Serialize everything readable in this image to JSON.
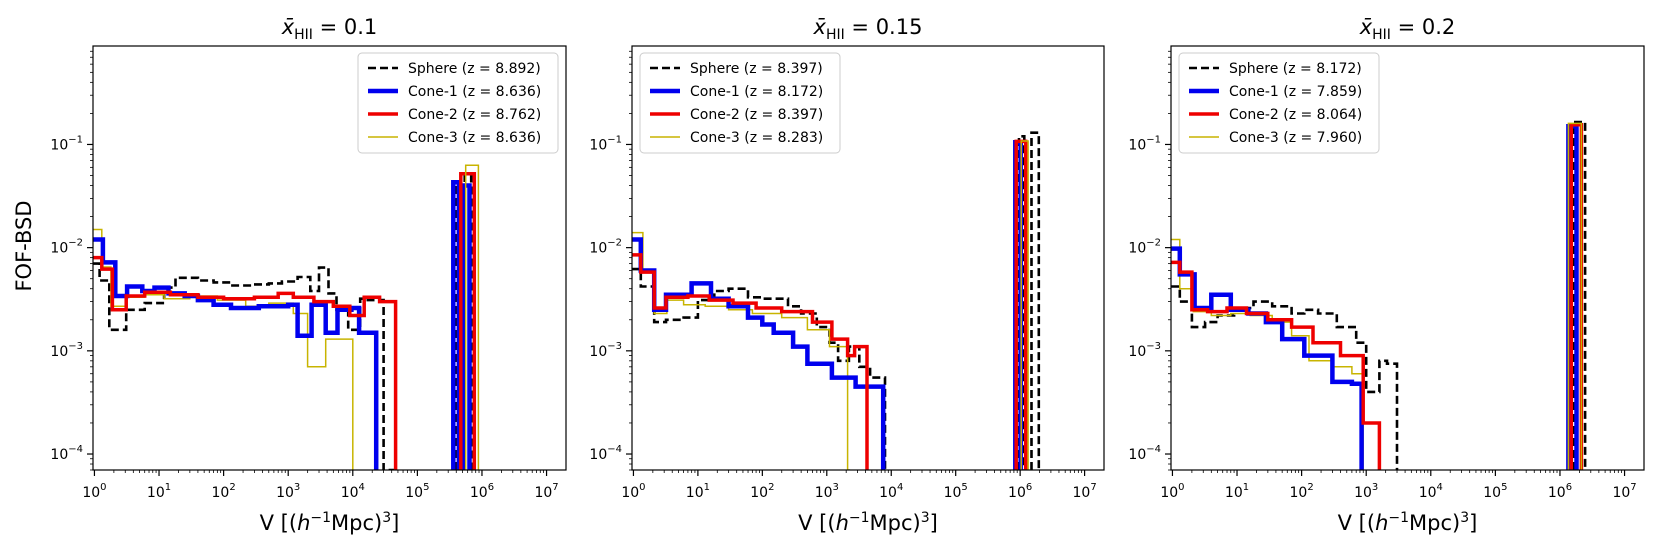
{
  "figure": {
    "ylabel": "FOF-BSD",
    "xlabel": "V [(",
    "xlabel_h": "h",
    "xlabel_exp": "−1",
    "xlabel_tail": "Mpc)",
    "xlabel_pow": "3",
    "xlabel_close": "]"
  },
  "chart_data": [
    {
      "type": "line",
      "step": true,
      "title_prefix": "x̄",
      "title_sub": "HII",
      "title_value": " = 0.1",
      "xscale": "log",
      "yscale": "log",
      "xlim": [
        0.95,
        20000000.0
      ],
      "ylim": [
        7e-05,
        0.9
      ],
      "xticks": [
        {
          "value": 1,
          "base": "10",
          "exp": "0"
        },
        {
          "value": 10,
          "base": "10",
          "exp": "1"
        },
        {
          "value": 100,
          "base": "10",
          "exp": "2"
        },
        {
          "value": 1000,
          "base": "10",
          "exp": "3"
        },
        {
          "value": 10000,
          "base": "10",
          "exp": "4"
        },
        {
          "value": 100000,
          "base": "10",
          "exp": "5"
        },
        {
          "value": 1000000,
          "base": "10",
          "exp": "6"
        },
        {
          "value": 10000000,
          "base": "10",
          "exp": "7"
        }
      ],
      "yticks": [
        {
          "value": 0.0001,
          "base": "10",
          "exp": "−4"
        },
        {
          "value": 0.001,
          "base": "10",
          "exp": "−3"
        },
        {
          "value": 0.01,
          "base": "10",
          "exp": "−2"
        },
        {
          "value": 0.1,
          "base": "10",
          "exp": "−1"
        }
      ],
      "legend_position": "upper-right",
      "series": [
        {
          "name": "Sphere (z = 8.892)",
          "color": "#000000",
          "style": "dashed",
          "width": 2.6,
          "x": [
            0.95,
            1.2,
            1.7,
            3.1,
            6,
            12,
            18,
            40,
            70,
            130,
            280,
            500,
            800,
            1400,
            2200,
            3000,
            4200,
            5600,
            8500,
            13000,
            16000,
            30000,
            45000
          ],
          "y": [
            0.007,
            0.0048,
            0.0016,
            0.0025,
            0.0029,
            0.0041,
            0.0051,
            0.0048,
            0.0046,
            0.0043,
            0.0044,
            0.0045,
            0.0047,
            0.0052,
            0.0038,
            0.0064,
            0.0036,
            0.0025,
            0.0016,
            0.0032,
            0.0031,
            7e-05,
            7e-05
          ]
        },
        {
          "name": "Cone-1 (z = 8.636)",
          "color": "#0000ee",
          "style": "solid",
          "width": 4.5,
          "x": [
            0.95,
            1.35,
            2.1,
            3.2,
            5.5,
            8.5,
            14,
            25,
            40,
            70,
            130,
            350,
            1000,
            1400,
            2300,
            3800,
            5800,
            9500,
            12500,
            23000
          ],
          "y": [
            0.012,
            0.0072,
            0.0034,
            0.0042,
            0.0038,
            0.0041,
            0.0036,
            0.0034,
            0.0031,
            0.0028,
            0.0026,
            0.0027,
            0.0028,
            0.0014,
            0.0028,
            0.0015,
            0.0025,
            0.0026,
            0.0015,
            7e-05
          ]
        },
        {
          "name": "Cone-2 (z = 8.762)",
          "color": "#ee0000",
          "style": "solid",
          "width": 3.5,
          "x": [
            0.95,
            1.3,
            1.9,
            3.1,
            6,
            15,
            40,
            100,
            300,
            700,
            1200,
            2500,
            5000,
            9000,
            15000,
            26000,
            46000
          ],
          "y": [
            0.008,
            0.0062,
            0.0025,
            0.0034,
            0.0037,
            0.0035,
            0.0033,
            0.0032,
            0.0033,
            0.0036,
            0.0033,
            0.003,
            0.0027,
            0.0022,
            0.0033,
            0.003,
            7e-05
          ]
        },
        {
          "name": "Cone-3 (z = 8.636)",
          "color": "#c8b400",
          "style": "solid",
          "width": 1.5,
          "x": [
            0.95,
            1.3,
            1.8,
            3.2,
            6,
            12,
            30,
            80,
            220,
            500,
            1200,
            2000,
            3800,
            6000,
            10000
          ],
          "y": [
            0.015,
            0.0065,
            0.0027,
            0.0033,
            0.0035,
            0.0032,
            0.0034,
            0.0031,
            0.0027,
            0.0029,
            0.0023,
            0.0007,
            0.0013,
            0.0013,
            7e-05
          ]
        }
      ],
      "peaks": [
        {
          "series": 0,
          "x0": 390000,
          "x1": 470000,
          "y": 0.04
        },
        {
          "series": 0,
          "x0": 540000,
          "x1": 680000,
          "y": 0.05
        },
        {
          "series": 1,
          "x0": 360000,
          "x1": 440000,
          "y": 0.043
        },
        {
          "series": 1,
          "x0": 520000,
          "x1": 640000,
          "y": 0.04
        },
        {
          "series": 2,
          "x0": 470000,
          "x1": 760000,
          "y": 0.052
        },
        {
          "series": 3,
          "x0": 560000,
          "x1": 880000,
          "y": 0.063
        }
      ]
    },
    {
      "type": "line",
      "step": true,
      "title_prefix": "x̄",
      "title_sub": "HII",
      "title_value": " = 0.15",
      "xscale": "log",
      "yscale": "log",
      "xlim": [
        0.95,
        20000000.0
      ],
      "ylim": [
        7e-05,
        0.9
      ],
      "xticks": [
        {
          "value": 1,
          "base": "10",
          "exp": "0"
        },
        {
          "value": 10,
          "base": "10",
          "exp": "1"
        },
        {
          "value": 100,
          "base": "10",
          "exp": "2"
        },
        {
          "value": 1000,
          "base": "10",
          "exp": "3"
        },
        {
          "value": 10000,
          "base": "10",
          "exp": "4"
        },
        {
          "value": 100000,
          "base": "10",
          "exp": "5"
        },
        {
          "value": 1000000,
          "base": "10",
          "exp": "6"
        },
        {
          "value": 10000000,
          "base": "10",
          "exp": "7"
        }
      ],
      "yticks": [
        {
          "value": 0.0001,
          "base": "10",
          "exp": "−4"
        },
        {
          "value": 0.001,
          "base": "10",
          "exp": "−3"
        },
        {
          "value": 0.01,
          "base": "10",
          "exp": "−2"
        },
        {
          "value": 0.1,
          "base": "10",
          "exp": "−1"
        }
      ],
      "legend_position": "upper-left",
      "series": [
        {
          "name": "Sphere (z = 8.397)",
          "color": "#000000",
          "style": "dashed",
          "width": 2.6,
          "x": [
            0.95,
            1.3,
            2.1,
            3.2,
            6,
            10,
            18,
            30,
            60,
            100,
            250,
            400,
            700,
            1100,
            1500,
            2200,
            3200,
            4700,
            8000,
            8500
          ],
          "y": [
            0.0062,
            0.0042,
            0.0019,
            0.002,
            0.0021,
            0.0031,
            0.0038,
            0.004,
            0.0033,
            0.0032,
            0.0027,
            0.0023,
            0.0017,
            0.0012,
            0.0008,
            0.0011,
            0.0007,
            0.00055,
            7e-05,
            7e-05
          ]
        },
        {
          "name": "Cone-1 (z = 8.172)",
          "color": "#0000ee",
          "style": "solid",
          "width": 4.5,
          "x": [
            0.95,
            1.3,
            2.1,
            3.2,
            8,
            16,
            30,
            60,
            100,
            150,
            300,
            500,
            1200,
            2800,
            4600,
            7500
          ],
          "y": [
            0.012,
            0.006,
            0.0025,
            0.0035,
            0.0045,
            0.0032,
            0.0027,
            0.0021,
            0.0018,
            0.0015,
            0.0011,
            0.00075,
            0.00055,
            0.00045,
            0.00045,
            7e-05
          ]
        },
        {
          "name": "Cone-2 (z = 8.397)",
          "color": "#ee0000",
          "style": "solid",
          "width": 3.5,
          "x": [
            0.95,
            1.3,
            2.1,
            3.2,
            7,
            15,
            35,
            80,
            200,
            600,
            1200,
            2100,
            2700,
            4200
          ],
          "y": [
            0.0085,
            0.0058,
            0.0026,
            0.0033,
            0.0034,
            0.0031,
            0.0029,
            0.0026,
            0.0024,
            0.0019,
            0.0013,
            0.0009,
            0.0011,
            7e-05
          ]
        },
        {
          "name": "Cone-3 (z = 8.283)",
          "color": "#c8b400",
          "style": "solid",
          "width": 1.5,
          "x": [
            0.95,
            1.4,
            2.1,
            3.3,
            6,
            13,
            30,
            70,
            200,
            500,
            1100,
            2100,
            2300
          ],
          "y": [
            0.014,
            0.006,
            0.0023,
            0.0031,
            0.0028,
            0.0027,
            0.0025,
            0.0023,
            0.0021,
            0.0016,
            0.0011,
            7e-05,
            7e-05
          ]
        }
      ],
      "peaks": [
        {
          "series": 0,
          "x0": 960000,
          "x1": 1160000,
          "y": 0.12
        },
        {
          "series": 0,
          "x0": 1500000,
          "x1": 1950000,
          "y": 0.13
        },
        {
          "series": 1,
          "x0": 840000,
          "x1": 1020000,
          "y": 0.105
        },
        {
          "series": 2,
          "x0": 870000,
          "x1": 1220000,
          "y": 0.107
        },
        {
          "series": 3,
          "x0": 1040000,
          "x1": 1330000,
          "y": 0.108
        }
      ]
    },
    {
      "type": "line",
      "step": true,
      "title_prefix": "x̄",
      "title_sub": "HII",
      "title_value": " = 0.2",
      "xscale": "log",
      "yscale": "log",
      "xlim": [
        0.95,
        20000000.0
      ],
      "ylim": [
        7e-05,
        0.9
      ],
      "xticks": [
        {
          "value": 1,
          "base": "10",
          "exp": "0"
        },
        {
          "value": 10,
          "base": "10",
          "exp": "1"
        },
        {
          "value": 100,
          "base": "10",
          "exp": "2"
        },
        {
          "value": 1000,
          "base": "10",
          "exp": "3"
        },
        {
          "value": 10000,
          "base": "10",
          "exp": "4"
        },
        {
          "value": 100000,
          "base": "10",
          "exp": "5"
        },
        {
          "value": 1000000,
          "base": "10",
          "exp": "6"
        },
        {
          "value": 10000000,
          "base": "10",
          "exp": "7"
        }
      ],
      "yticks": [
        {
          "value": 0.0001,
          "base": "10",
          "exp": "−4"
        },
        {
          "value": 0.001,
          "base": "10",
          "exp": "−3"
        },
        {
          "value": 0.01,
          "base": "10",
          "exp": "−2"
        },
        {
          "value": 0.1,
          "base": "10",
          "exp": "−1"
        }
      ],
      "legend_position": "upper-left",
      "series": [
        {
          "name": "Sphere (z = 8.172)",
          "color": "#000000",
          "style": "dashed",
          "width": 2.6,
          "x": [
            0.95,
            1.3,
            2,
            3.2,
            5,
            9,
            18,
            35,
            70,
            110,
            180,
            350,
            700,
            1000,
            1600,
            2100,
            3000
          ],
          "y": [
            0.0042,
            0.003,
            0.0017,
            0.0019,
            0.0022,
            0.0026,
            0.003,
            0.0027,
            0.0023,
            0.0025,
            0.0023,
            0.0017,
            0.0012,
            0.0004,
            0.0008,
            0.00075,
            7e-05
          ]
        },
        {
          "name": "Cone-1 (z = 7.859)",
          "color": "#0000ee",
          "style": "solid",
          "width": 4.5,
          "x": [
            0.95,
            1.3,
            2.2,
            4,
            8,
            15,
            28,
            50,
            110,
            300,
            600,
            850
          ],
          "y": [
            0.0098,
            0.0055,
            0.0026,
            0.0035,
            0.0025,
            0.0023,
            0.0019,
            0.0013,
            0.0009,
            0.0005,
            0.00048,
            7e-05
          ]
        },
        {
          "name": "Cone-2 (z = 8.064)",
          "color": "#ee0000",
          "style": "solid",
          "width": 3.5,
          "x": [
            0.95,
            1.3,
            2,
            3.5,
            7,
            14,
            30,
            70,
            150,
            400,
            900,
            1600
          ],
          "y": [
            0.0072,
            0.0058,
            0.0025,
            0.0024,
            0.0026,
            0.0023,
            0.002,
            0.0017,
            0.0012,
            0.0009,
            0.0002,
            7e-05
          ]
        },
        {
          "name": "Cone-3 (z = 7.960)",
          "color": "#c8b400",
          "style": "solid",
          "width": 1.5,
          "x": [
            0.95,
            1.3,
            2.1,
            4,
            8,
            16,
            35,
            70,
            130,
            300,
            600,
            900
          ],
          "y": [
            0.012,
            0.004,
            0.0024,
            0.0022,
            0.0023,
            0.0022,
            0.0019,
            0.0014,
            0.0008,
            0.0007,
            0.0006,
            7e-05
          ]
        }
      ],
      "peaks": [
        {
          "series": 0,
          "x0": 1650000,
          "x1": 2450000,
          "y": 0.165
        },
        {
          "series": 1,
          "x0": 1350000,
          "x1": 1800000,
          "y": 0.15
        },
        {
          "series": 2,
          "x0": 1500000,
          "x1": 2150000,
          "y": 0.155
        },
        {
          "series": 3,
          "x0": 1350000,
          "x1": 2150000,
          "y": 0.16
        }
      ]
    }
  ]
}
